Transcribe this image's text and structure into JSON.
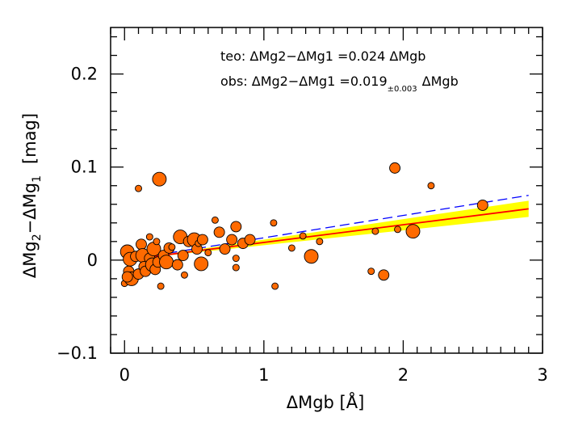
{
  "chart_data": {
    "type": "scatter",
    "xlabel": "ΔMgb  [Å]",
    "ylabel_parts": {
      "d1": "ΔMg",
      "s1": "2",
      "mid": "−ΔMg",
      "s2": "1",
      "unit": "[mag]"
    },
    "xlim": [
      -0.1,
      3.0
    ],
    "ylim": [
      -0.1,
      0.25
    ],
    "x_ticks": [
      0,
      1,
      2,
      3
    ],
    "y_ticks": [
      -0.1,
      0,
      0.1,
      0.2
    ],
    "x_tick_labels": [
      "0",
      "1",
      "2",
      "3"
    ],
    "y_tick_labels": [
      "−0.1",
      "0",
      "0.1",
      "0.2"
    ],
    "annotations": {
      "teo": "teo: ΔMg2−ΔMg1 =0.024 ΔMgb",
      "obs_main": "obs: ΔMg2−ΔMg1 =0.019",
      "obs_err": "±0.003",
      "obs_tail": "ΔMgb"
    },
    "fits": {
      "observed": {
        "slope": 0.019,
        "intercept": 0.0,
        "x_range": [
          0,
          2.9
        ],
        "color": "#ff0000",
        "style": "solid"
      },
      "theoretical": {
        "slope": 0.024,
        "intercept": 0.0,
        "x_range": [
          0,
          2.9
        ],
        "color": "#0000ff",
        "style": "dashed"
      },
      "band": {
        "slope_low": 0.016,
        "slope_high": 0.022,
        "x_range": [
          0,
          2.9
        ],
        "color": "#ffff00"
      }
    },
    "marker_color": "#ff6a00",
    "points": [
      {
        "x": 0.02,
        "y": 0.009,
        "s": 3
      },
      {
        "x": 0.03,
        "y": -0.012,
        "s": 2
      },
      {
        "x": 0.04,
        "y": 0.001,
        "s": 3
      },
      {
        "x": 0.0,
        "y": -0.025,
        "s": 1
      },
      {
        "x": 0.05,
        "y": -0.02,
        "s": 3
      },
      {
        "x": 0.02,
        "y": -0.018,
        "s": 2
      },
      {
        "x": 0.08,
        "y": 0.004,
        "s": 2
      },
      {
        "x": 0.1,
        "y": -0.015,
        "s": 2
      },
      {
        "x": 0.1,
        "y": 0.077,
        "s": 1
      },
      {
        "x": 0.12,
        "y": 0.017,
        "s": 2
      },
      {
        "x": 0.13,
        "y": 0.005,
        "s": 3
      },
      {
        "x": 0.14,
        "y": -0.007,
        "s": 2
      },
      {
        "x": 0.15,
        "y": -0.012,
        "s": 2
      },
      {
        "x": 0.18,
        "y": 0.025,
        "s": 1
      },
      {
        "x": 0.18,
        "y": 0.002,
        "s": 2
      },
      {
        "x": 0.2,
        "y": -0.005,
        "s": 3
      },
      {
        "x": 0.21,
        "y": 0.012,
        "s": 3
      },
      {
        "x": 0.22,
        "y": -0.01,
        "s": 2
      },
      {
        "x": 0.23,
        "y": 0.02,
        "s": 1
      },
      {
        "x": 0.24,
        "y": -0.002,
        "s": 2
      },
      {
        "x": 0.25,
        "y": 0.087,
        "s": 3
      },
      {
        "x": 0.26,
        "y": -0.028,
        "s": 1
      },
      {
        "x": 0.28,
        "y": 0.005,
        "s": 2
      },
      {
        "x": 0.3,
        "y": -0.002,
        "s": 3
      },
      {
        "x": 0.32,
        "y": 0.013,
        "s": 2
      },
      {
        "x": 0.34,
        "y": 0.014,
        "s": 1
      },
      {
        "x": 0.38,
        "y": -0.005,
        "s": 2
      },
      {
        "x": 0.4,
        "y": 0.025,
        "s": 3
      },
      {
        "x": 0.42,
        "y": 0.005,
        "s": 2
      },
      {
        "x": 0.43,
        "y": -0.016,
        "s": 1
      },
      {
        "x": 0.46,
        "y": 0.02,
        "s": 2
      },
      {
        "x": 0.5,
        "y": 0.022,
        "s": 3
      },
      {
        "x": 0.52,
        "y": 0.012,
        "s": 2
      },
      {
        "x": 0.53,
        "y": 0.018,
        "s": 1
      },
      {
        "x": 0.55,
        "y": -0.004,
        "s": 3
      },
      {
        "x": 0.56,
        "y": 0.022,
        "s": 2
      },
      {
        "x": 0.6,
        "y": 0.008,
        "s": 1
      },
      {
        "x": 0.65,
        "y": 0.043,
        "s": 1
      },
      {
        "x": 0.68,
        "y": 0.03,
        "s": 2
      },
      {
        "x": 0.72,
        "y": 0.012,
        "s": 2
      },
      {
        "x": 0.77,
        "y": 0.022,
        "s": 2
      },
      {
        "x": 0.8,
        "y": 0.036,
        "s": 2
      },
      {
        "x": 0.8,
        "y": 0.002,
        "s": 1
      },
      {
        "x": 0.8,
        "y": -0.008,
        "s": 1
      },
      {
        "x": 0.85,
        "y": 0.018,
        "s": 2
      },
      {
        "x": 0.9,
        "y": 0.022,
        "s": 2
      },
      {
        "x": 1.07,
        "y": 0.04,
        "s": 1
      },
      {
        "x": 1.08,
        "y": -0.028,
        "s": 1
      },
      {
        "x": 1.2,
        "y": 0.013,
        "s": 1
      },
      {
        "x": 1.28,
        "y": 0.026,
        "s": 1
      },
      {
        "x": 1.34,
        "y": 0.004,
        "s": 3
      },
      {
        "x": 1.4,
        "y": 0.02,
        "s": 1
      },
      {
        "x": 1.77,
        "y": -0.012,
        "s": 1
      },
      {
        "x": 1.8,
        "y": 0.031,
        "s": 1
      },
      {
        "x": 1.86,
        "y": -0.016,
        "s": 2
      },
      {
        "x": 1.94,
        "y": 0.099,
        "s": 2
      },
      {
        "x": 1.96,
        "y": 0.033,
        "s": 1
      },
      {
        "x": 2.07,
        "y": 0.031,
        "s": 3
      },
      {
        "x": 2.2,
        "y": 0.08,
        "s": 1
      },
      {
        "x": 2.57,
        "y": 0.059,
        "s": 2
      }
    ]
  }
}
